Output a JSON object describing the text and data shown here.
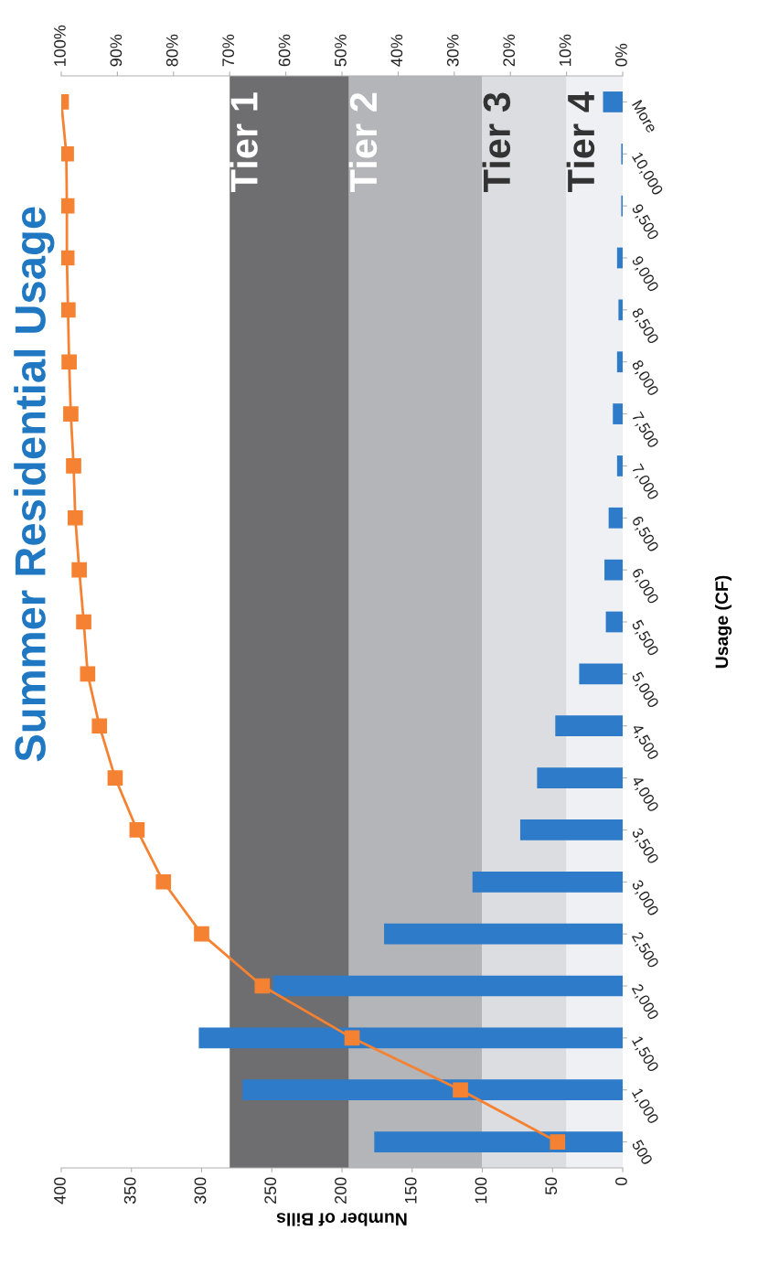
{
  "chart_data": {
    "type": "bar",
    "orientation": "horizontal",
    "title": "Summer Residential Usage",
    "xlabel": "Number of Bills",
    "ylabel": "Usage (CF)",
    "categories": [
      "More",
      "10,000",
      "9,500",
      "9,000",
      "8,500",
      "8,000",
      "7,500",
      "7,000",
      "6,500",
      "6,000",
      "5,500",
      "5,000",
      "4,500",
      "4,000",
      "3,500",
      "3,000",
      "2,500",
      "2,000",
      "1,500",
      "1,000",
      "500"
    ],
    "series": [
      {
        "color": "#2e7bc9",
        "values": [
          14,
          1,
          1,
          4,
          3,
          4,
          7,
          4,
          10,
          13,
          12,
          31,
          48,
          61,
          73,
          107,
          170,
          249,
          302,
          271,
          177
        ]
      },
      {
        "type": "line",
        "axis": "x2",
        "color": "#f58232",
        "marker": "square",
        "line_style": "solid",
        "values": [
          100,
          99.1,
          99,
          99,
          98.8,
          98.6,
          98.3,
          97.8,
          97.5,
          96.8,
          96,
          95.3,
          93.2,
          90.4,
          86.5,
          81.8,
          75,
          64.2,
          48.2,
          28.9,
          11.6
        ]
      }
    ],
    "xlim": [
      400,
      0
    ],
    "xticks": [
      0,
      50,
      100,
      150,
      200,
      250,
      300,
      350,
      400
    ],
    "x2lim": [
      100,
      0
    ],
    "x2ticks": [
      {
        "value": 0,
        "label": "0%"
      },
      {
        "value": 10,
        "label": "10%"
      },
      {
        "value": 20,
        "label": "20%"
      },
      {
        "value": 30,
        "label": "30%"
      },
      {
        "value": 40,
        "label": "40%"
      },
      {
        "value": 50,
        "label": "50%"
      },
      {
        "value": 60,
        "label": "60%"
      },
      {
        "value": 70,
        "label": "70%"
      },
      {
        "value": 80,
        "label": "80%"
      },
      {
        "value": 90,
        "label": "90%"
      },
      {
        "value": 100,
        "label": "100%"
      }
    ],
    "bands": [
      {
        "axis": "x",
        "from": 195,
        "to": 280,
        "label": "Tier 1",
        "color": "#6e6e70"
      },
      {
        "axis": "x",
        "from": 100,
        "to": 195,
        "label": "Tier 2",
        "color": "#b4b5b8"
      },
      {
        "axis": "x",
        "from": 40,
        "to": 100,
        "label": "Tier 3",
        "color": "#dcdde0"
      },
      {
        "axis": "x",
        "from": 0,
        "to": 40,
        "label": "Tier 4",
        "color": "#eef0f4"
      }
    ],
    "grid": false,
    "legend": false
  }
}
